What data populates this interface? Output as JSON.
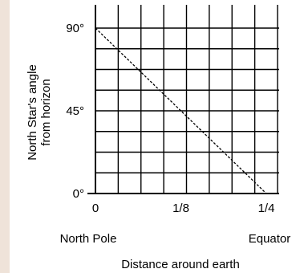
{
  "chart_data": {
    "type": "line",
    "xlabel": "Distance around earth",
    "ylabel_lines": [
      "North Star's angle",
      "from horizon"
    ],
    "x_tick_labels": [
      {
        "value": 0,
        "label": "0"
      },
      {
        "value": 0.125,
        "label": "1/8"
      },
      {
        "value": 0.25,
        "label": "1/4"
      }
    ],
    "y_tick_labels": [
      {
        "value": 0,
        "label": "0°"
      },
      {
        "value": 45,
        "label": "45°"
      },
      {
        "value": 90,
        "label": "90°"
      }
    ],
    "annotations": {
      "left": "North Pole",
      "right": "Equator"
    },
    "xlim": [
      0,
      0.25
    ],
    "ylim": [
      0,
      90
    ],
    "grid": true,
    "series": [
      {
        "x": [
          0,
          0.25
        ],
        "y": [
          90,
          0
        ],
        "style": "dashed"
      }
    ],
    "colors": {
      "background": "#efe3d9",
      "panel": "#ffffff",
      "ink": "#000000"
    }
  }
}
